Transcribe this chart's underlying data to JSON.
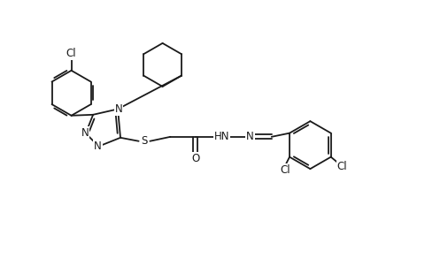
{
  "bg_color": "#ffffff",
  "line_color": "#1a1a1a",
  "line_width": 1.3,
  "font_size": 8.5,
  "figsize": [
    4.8,
    2.92
  ],
  "dpi": 100,
  "xlim": [
    0,
    9.6
  ],
  "ylim": [
    0,
    5.84
  ]
}
